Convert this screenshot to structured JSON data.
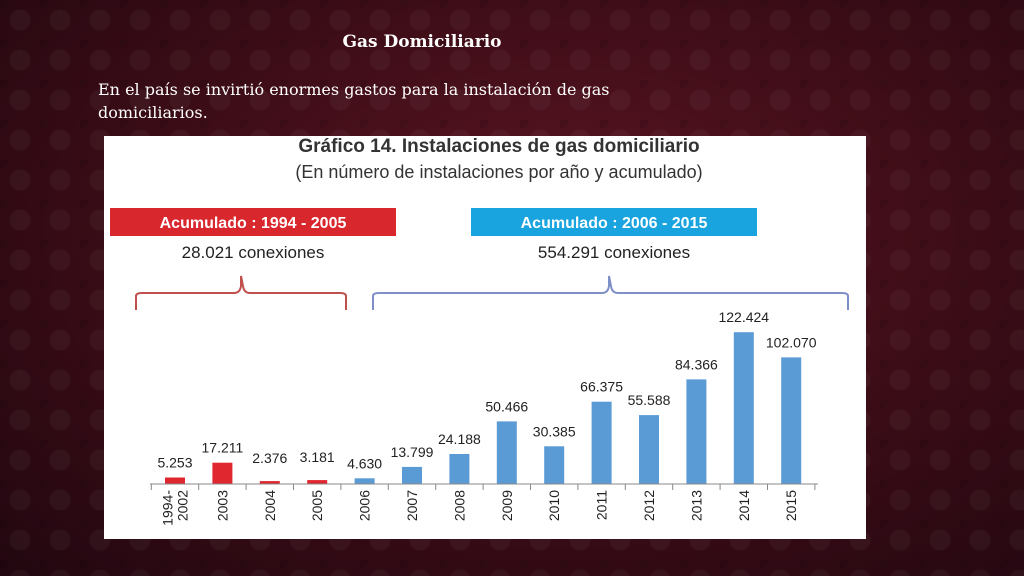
{
  "slide": {
    "title": "Gas Domiciliario",
    "body": "En el país se invirtió enormes gastos para la instalación de gas domiciliarios."
  },
  "colors": {
    "red_series": "#e0262e",
    "blue_series": "#5b9bd5",
    "left_banner": "#d9272e",
    "right_banner": "#19a4e0",
    "left_brace": "#c0504d",
    "right_brace": "#7f8fc8"
  },
  "chart_data": {
    "type": "bar",
    "title": "Gráfico 14. Instalaciones de gas domiciliario",
    "subtitle": "(En número de instalaciones por año y acumulado)",
    "annotations": [
      {
        "label": "Acumulado : 1994 - 2005",
        "text": "28.021 conexiones",
        "color": "#d9272e"
      },
      {
        "label": "Acumulado : 2006 - 2015",
        "text": "554.291 conexiones",
        "color": "#19a4e0"
      }
    ],
    "categories": [
      "1994-\n2002",
      "2003",
      "2004",
      "2005",
      "2006",
      "2007",
      "2008",
      "2009",
      "2010",
      "2011",
      "2012",
      "2013",
      "2014",
      "2015"
    ],
    "values": [
      5253,
      17211,
      2376,
      3181,
      4630,
      13799,
      24188,
      50466,
      30385,
      66375,
      55588,
      84366,
      122424,
      102070
    ],
    "value_labels": [
      "5.253",
      "17.211",
      "2.376",
      "3.181",
      "4.630",
      "13.799",
      "24.188",
      "50.466",
      "30.385",
      "66.375",
      "55.588",
      "84.366",
      "122.424",
      "102.070"
    ],
    "bar_colors": [
      "#e0262e",
      "#e0262e",
      "#e0262e",
      "#e0262e",
      "#5b9bd5",
      "#5b9bd5",
      "#5b9bd5",
      "#5b9bd5",
      "#5b9bd5",
      "#5b9bd5",
      "#5b9bd5",
      "#5b9bd5",
      "#5b9bd5",
      "#5b9bd5"
    ],
    "xlabel": "",
    "ylabel": "",
    "ylim": [
      0,
      125000
    ],
    "grid": false,
    "legend": "none"
  }
}
